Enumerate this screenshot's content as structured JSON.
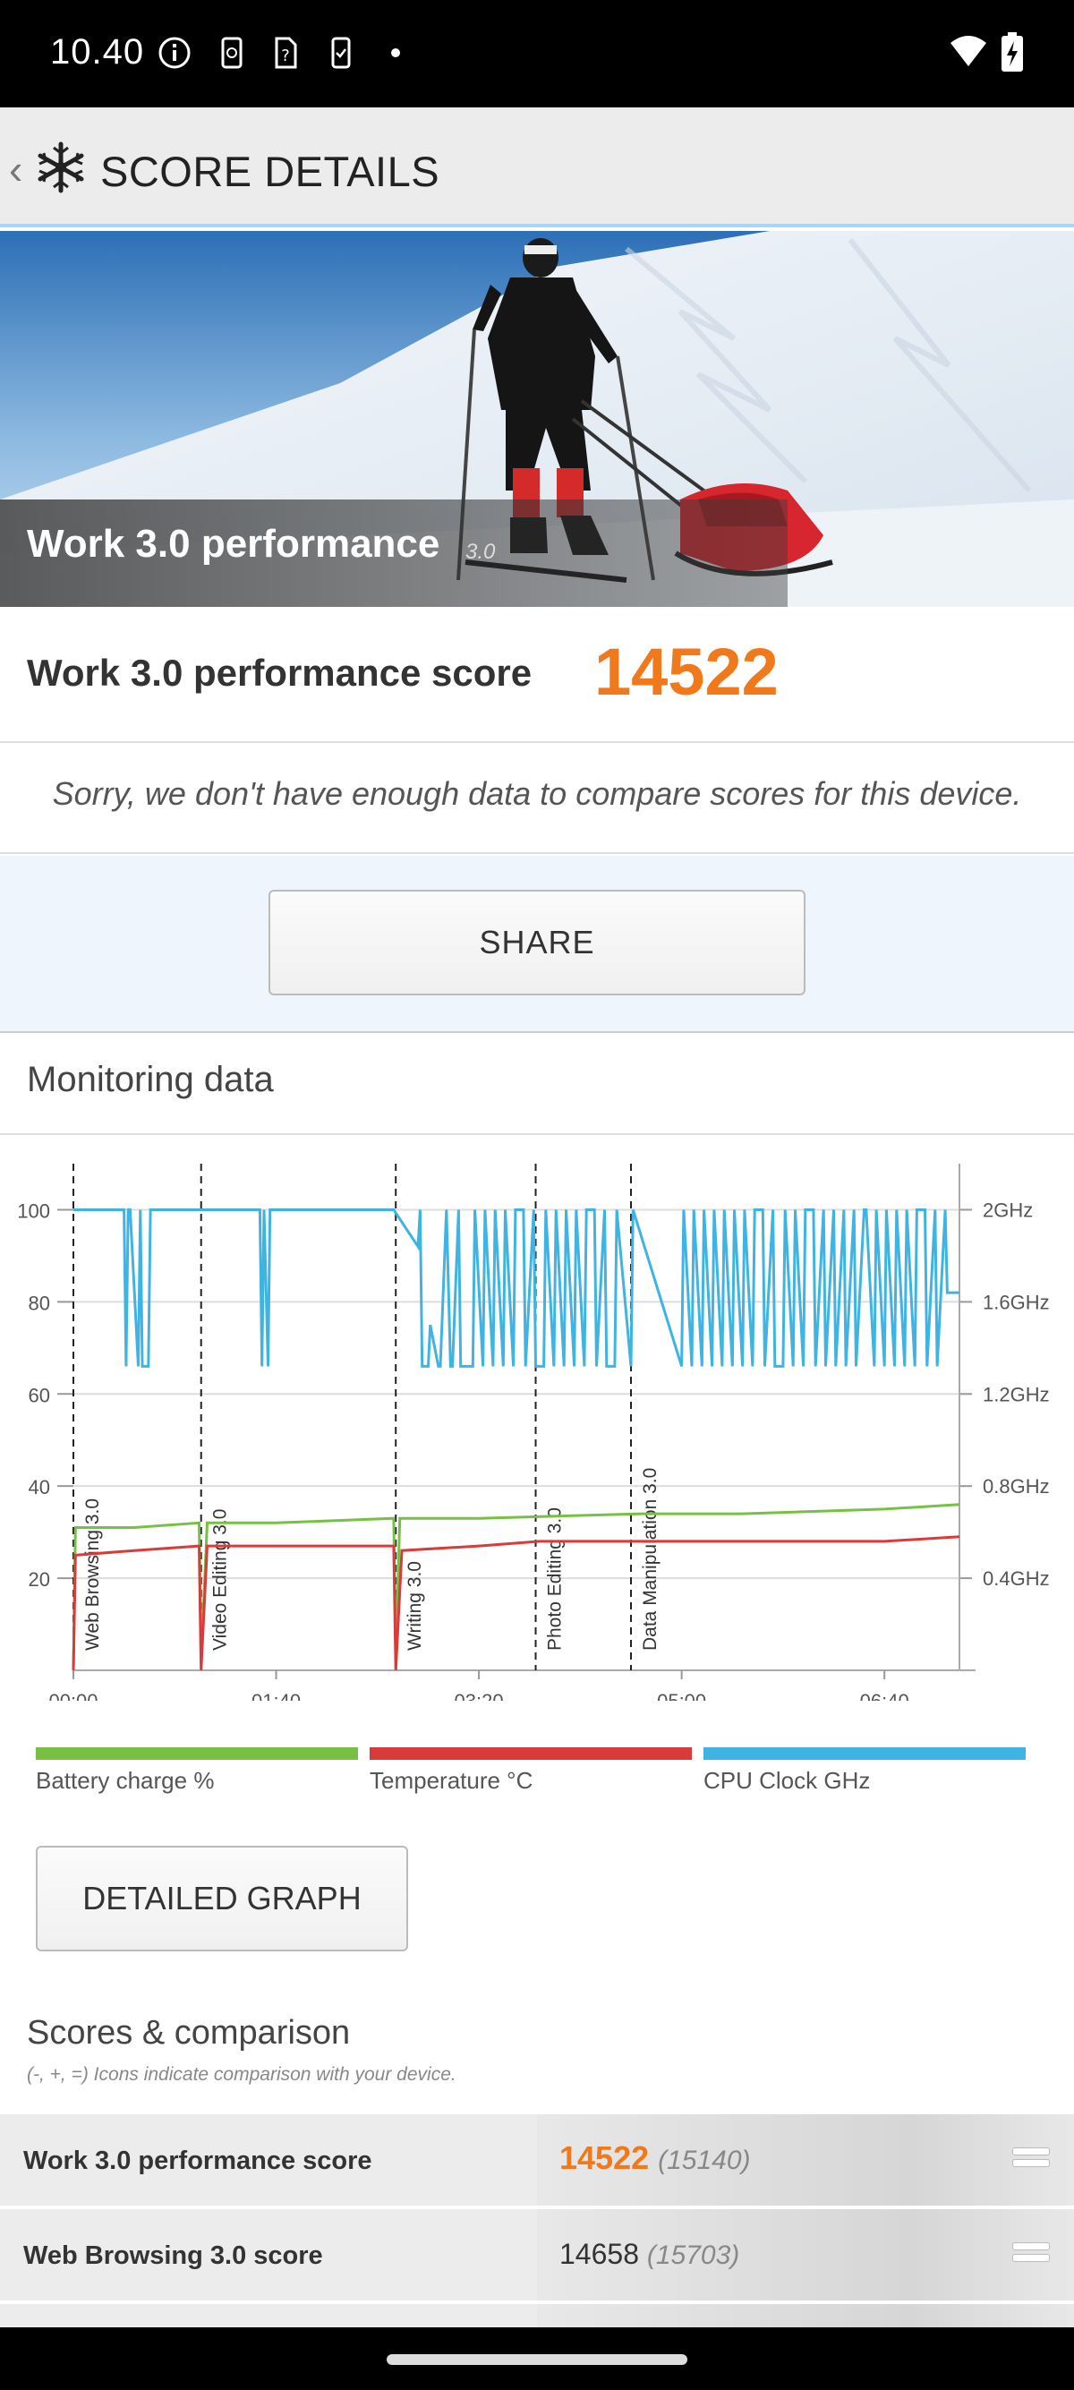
{
  "status_bar": {
    "time": "10.40"
  },
  "header": {
    "title": "SCORE DETAILS"
  },
  "hero": {
    "title": "Work 3.0 performance",
    "version": "3.0"
  },
  "score": {
    "label": "Work 3.0 performance score",
    "value": "14522"
  },
  "compare_note": "Sorry, we don't have enough data to compare scores for this device.",
  "share_label": "SHARE",
  "monitoring": {
    "title": "Monitoring data"
  },
  "colors": {
    "accent": "#f07a1b",
    "battery": "#77c043",
    "temperature": "#d93b3b",
    "cpu": "#3fb4e3"
  },
  "chart_data": {
    "type": "line",
    "x_ticks": [
      "00:00",
      "01:40",
      "03:20",
      "05:00",
      "06:40"
    ],
    "y_left_ticks": [
      "100",
      "80",
      "60",
      "40",
      "20"
    ],
    "y_right_ticks": [
      "2GHz",
      "1.6GHz",
      "1.2GHz",
      "0.8GHz",
      "0.4GHz"
    ],
    "xlim_minutes": [
      0,
      437
    ],
    "ylim_left": [
      0,
      110
    ],
    "ylim_right_ghz": [
      0,
      2.2
    ],
    "phases": [
      {
        "name": "Web Browsing 3.0",
        "start_min": 0
      },
      {
        "name": "Video Editing 3.0",
        "start_min": 63
      },
      {
        "name": "Writing 3.0",
        "start_min": 159
      },
      {
        "name": "Photo Editing 3.0",
        "start_min": 228
      },
      {
        "name": "Data Manipulation 3.0",
        "start_min": 275
      }
    ],
    "series": [
      {
        "name": "Battery charge %",
        "x": [
          0,
          1,
          30,
          62,
          63,
          66,
          100,
          158,
          159,
          161,
          200,
          280,
          330,
          400,
          437
        ],
        "values": [
          0,
          31,
          31,
          32,
          2,
          32,
          32,
          33,
          2,
          33,
          33,
          34,
          34,
          35,
          36
        ]
      },
      {
        "name": "Temperature °C",
        "x": [
          0,
          1,
          30,
          62,
          63,
          66,
          100,
          158,
          159,
          162,
          200,
          230,
          300,
          400,
          437
        ],
        "values": [
          0,
          25,
          26,
          27,
          0,
          27,
          27,
          27,
          0,
          26,
          27,
          28,
          28,
          28,
          29
        ]
      },
      {
        "name": "CPU Clock GHz",
        "x": [
          0,
          25,
          26,
          27,
          28,
          32,
          33,
          34,
          37,
          38,
          92,
          93,
          94,
          96,
          97,
          158,
          170,
          171,
          172,
          175,
          176,
          180,
          181,
          184,
          186,
          187,
          190,
          191,
          197,
          198,
          202,
          203,
          207,
          208,
          212,
          213,
          217,
          218,
          222,
          223,
          227,
          228,
          232,
          233,
          237,
          238,
          242,
          243,
          247,
          248,
          252,
          253,
          257,
          258,
          262,
          263,
          267,
          268,
          275,
          276,
          300,
          301,
          305,
          306,
          310,
          311,
          315,
          316,
          320,
          321,
          325,
          326,
          330,
          331,
          335,
          336,
          340,
          341,
          345,
          346,
          350,
          351,
          355,
          356,
          360,
          361,
          365,
          366,
          370,
          371,
          375,
          376,
          380,
          381,
          385,
          386,
          390,
          391,
          395,
          396,
          400,
          401,
          405,
          406,
          410,
          411,
          415,
          416,
          420,
          421,
          425,
          426,
          430,
          431,
          437
        ],
        "values": [
          100,
          100,
          66,
          100,
          100,
          66,
          100,
          66,
          66,
          100,
          100,
          66,
          100,
          66,
          100,
          100,
          92,
          100,
          66,
          66,
          75,
          66,
          66,
          100,
          66,
          66,
          100,
          66,
          66,
          100,
          66,
          100,
          66,
          100,
          66,
          100,
          66,
          100,
          100,
          66,
          100,
          66,
          66,
          100,
          66,
          100,
          66,
          100,
          66,
          100,
          66,
          100,
          100,
          66,
          100,
          66,
          66,
          100,
          66,
          100,
          66,
          100,
          66,
          100,
          66,
          100,
          66,
          100,
          66,
          100,
          66,
          100,
          66,
          100,
          66,
          100,
          100,
          66,
          100,
          66,
          66,
          100,
          66,
          100,
          66,
          100,
          100,
          66,
          100,
          66,
          100,
          66,
          100,
          66,
          100,
          66,
          100,
          100,
          66,
          100,
          66,
          100,
          66,
          100,
          66,
          100,
          66,
          100,
          100,
          66,
          100,
          66,
          100,
          82,
          82
        ]
      }
    ]
  },
  "legend": [
    {
      "label": "Battery charge %",
      "color": "#77c043"
    },
    {
      "label": "Temperature °C",
      "color": "#d93b3b"
    },
    {
      "label": "CPU Clock GHz",
      "color": "#3fb4e3"
    }
  ],
  "detailed_graph_label": "DETAILED GRAPH",
  "scores": {
    "title": "Scores & comparison",
    "subtitle": "(-, +, =) Icons indicate comparison with your device.",
    "rows": [
      {
        "label": "Work 3.0 performance score",
        "value": "14522",
        "reference": "(15140)"
      },
      {
        "label": "Web Browsing 3.0 score",
        "value": "14658",
        "reference": "(15703)"
      }
    ]
  }
}
